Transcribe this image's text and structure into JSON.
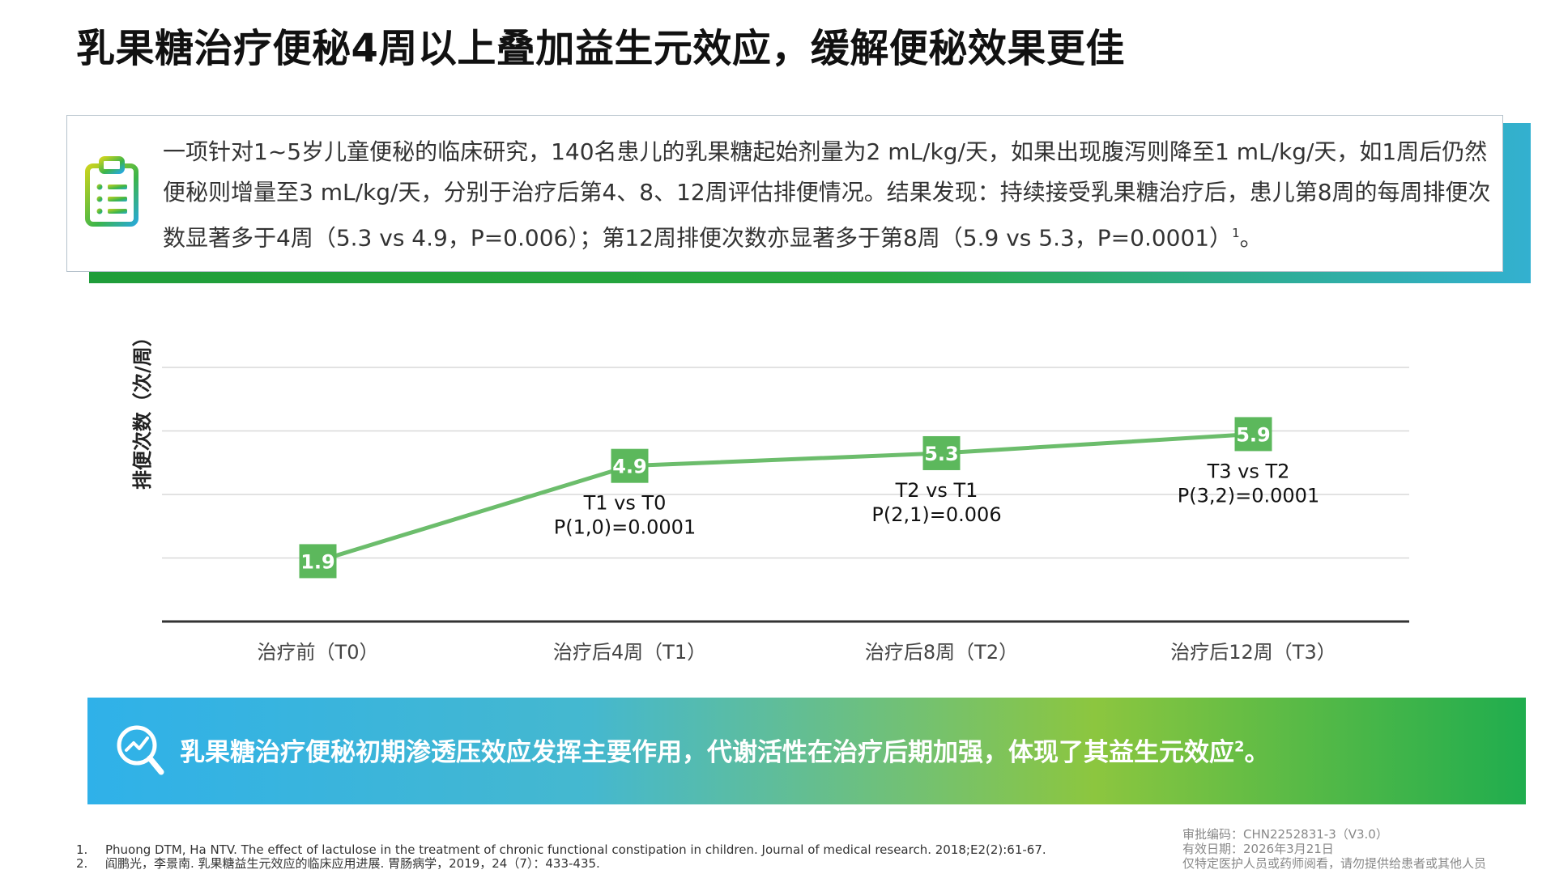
{
  "title": "乳果糖治疗便秘4周以上叠加益生元效应，缓解便秘效果更佳",
  "info": {
    "text": "一项针对1~5岁儿童便秘的临床研究，140名患儿的乳果糖起始剂量为2 mL/kg/天，如果出现腹泻则降至1 mL/kg/天，如1周后仍然便秘则增量至3 mL/kg/天，分别于治疗后第4、8、12周评估排便情况。结果发现：持续接受乳果糖治疗后，患儿第8周的每周排便次数显著多于4周（5.3 vs 4.9，P=0.006）；第12周排便次数亦显著多于第8周（5.9 vs 5.3，P=0.0001）",
    "sup": "1",
    "end": "。"
  },
  "chart_data": {
    "type": "line",
    "categories": [
      "治疗前（T0）",
      "治疗后4周（T1）",
      "治疗后8周（T2）",
      "治疗后12周（T3）"
    ],
    "values": [
      1.9,
      4.9,
      5.3,
      5.9
    ],
    "ylabel": "排便次数（次/周）",
    "ylim": [
      0,
      8
    ],
    "grid": true,
    "line_color": "#6cbd6c",
    "marker_color": "#5cb85c",
    "annotations": [
      {
        "point": 1,
        "lines": [
          "T1 vs T0",
          "P(1,0)=0.0001"
        ]
      },
      {
        "point": 2,
        "lines": [
          "T2 vs T1",
          "P(2,1)=0.006"
        ]
      },
      {
        "point": 3,
        "lines": [
          "T3 vs T2",
          "P(3,2)=0.0001"
        ]
      }
    ]
  },
  "banner": {
    "text": "乳果糖治疗便秘初期渗透压效应发挥主要作用，代谢活性在治疗后期加强，体现了其益生元效应",
    "sup": "2",
    "end": "。"
  },
  "references": [
    {
      "num": "1.",
      "text": "Phuong DTM, Ha NTV. The effect of lactulose in the treatment of chronic functional constipation in children. Journal of medical research. 2018;E2(2):61-67."
    },
    {
      "num": "2.",
      "text": "阎鹏光，李景南. 乳果糖益生元效应的临床应用进展. 胃肠病学，2019，24（7）：433-435."
    }
  ],
  "approval": {
    "code": "审批编码：CHN2252831-3（V3.0）",
    "date": "有效日期：2026年3月21日",
    "note": "仅特定医护人员或药师阅看，请勿提供给患者或其他人员"
  }
}
